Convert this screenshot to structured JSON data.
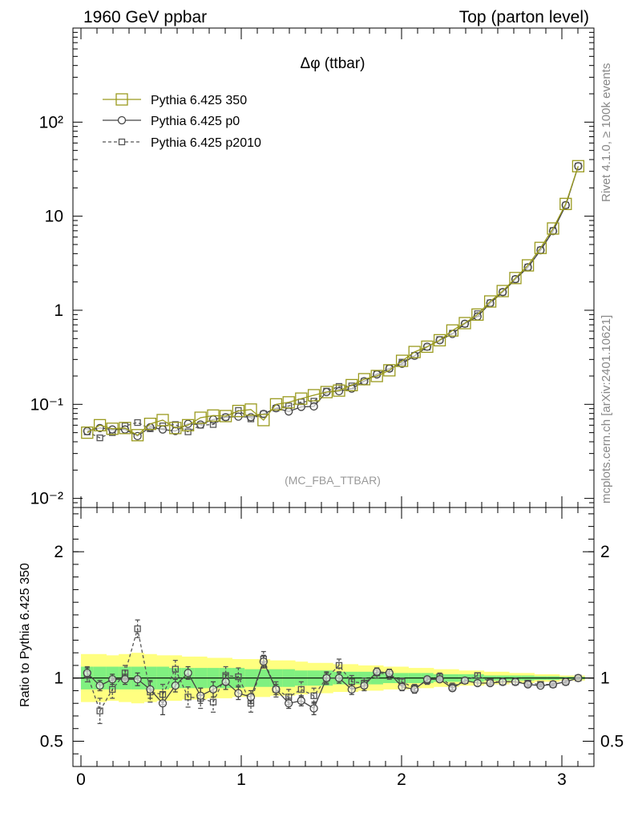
{
  "header": {
    "left_title": "1960 GeV ppbar",
    "right_title": "Top (parton level)"
  },
  "side_labels": {
    "rivet": "Rivet 4.1.0, ≥ 100k events",
    "mcplots": "mcplots.cern.ch [arXiv:2401.10621]"
  },
  "colors": {
    "ref": "#9a9a1e",
    "p0": "#444444",
    "p2010": "#555555",
    "band_yellow": "#ffff80",
    "band_green": "#80f080"
  },
  "chart_data": [
    {
      "type": "line",
      "title": "Δφ (ttbar)",
      "watermark": "(MC_FBA_TTBAR)",
      "xlabel": "",
      "ylabel": "",
      "yscale": "log",
      "xlim": [
        -0.05,
        3.2
      ],
      "ylim": [
        0.008,
        1000
      ],
      "ytick_labels": [
        "10⁻²",
        "10⁻¹",
        "1",
        "10",
        "10²"
      ],
      "x": [
        0.039,
        0.118,
        0.196,
        0.275,
        0.353,
        0.432,
        0.51,
        0.589,
        0.668,
        0.746,
        0.825,
        0.903,
        0.982,
        1.06,
        1.139,
        1.217,
        1.296,
        1.374,
        1.453,
        1.532,
        1.61,
        1.689,
        1.767,
        1.846,
        1.924,
        2.003,
        2.081,
        2.16,
        2.238,
        2.317,
        2.395,
        2.474,
        2.553,
        2.631,
        2.71,
        2.788,
        2.867,
        2.945,
        3.024,
        3.102
      ],
      "series": [
        {
          "name": "Pythia 6.425 350",
          "values": [
            0.05,
            0.06,
            0.055,
            0.056,
            0.047,
            0.062,
            0.068,
            0.056,
            0.06,
            0.072,
            0.076,
            0.075,
            0.085,
            0.088,
            0.068,
            0.1,
            0.105,
            0.115,
            0.125,
            0.135,
            0.14,
            0.16,
            0.185,
            0.2,
            0.23,
            0.29,
            0.36,
            0.41,
            0.48,
            0.61,
            0.73,
            0.9,
            1.24,
            1.6,
            2.2,
            3.0,
            4.6,
            7.4,
            13.5,
            34.0
          ]
        },
        {
          "name": "Pythia 6.425 p0",
          "values": [
            0.052,
            0.056,
            0.054,
            0.054,
            0.046,
            0.057,
            0.054,
            0.052,
            0.062,
            0.061,
            0.069,
            0.073,
            0.074,
            0.073,
            0.079,
            0.091,
            0.084,
            0.094,
            0.095,
            0.135,
            0.138,
            0.147,
            0.176,
            0.208,
            0.24,
            0.27,
            0.328,
            0.41,
            0.48,
            0.56,
            0.72,
            0.86,
            1.19,
            1.56,
            2.14,
            2.86,
            4.35,
            6.95,
            13.1,
            34.0
          ]
        },
        {
          "name": "Pythia 6.425 p2010",
          "values": [
            0.051,
            0.044,
            0.05,
            0.059,
            0.064,
            0.055,
            0.059,
            0.061,
            0.051,
            0.06,
            0.061,
            0.073,
            0.086,
            0.07,
            0.079,
            0.091,
            0.096,
            0.106,
            0.108,
            0.138,
            0.155,
            0.157,
            0.176,
            0.21,
            0.242,
            0.281,
            0.33,
            0.406,
            0.488,
            0.57,
            0.717,
            0.92,
            1.2,
            1.56,
            2.14,
            2.88,
            4.37,
            7.03,
            13.1,
            34.2
          ]
        }
      ]
    },
    {
      "type": "line",
      "title": "",
      "xlabel": "",
      "ylabel": "Ratio to Pythia 6.425 350",
      "xlim": [
        -0.05,
        3.2
      ],
      "ylim": [
        0.3,
        2.35
      ],
      "xticks": [
        0,
        1,
        2,
        3
      ],
      "yticks": [
        0.5,
        1,
        2
      ],
      "x": [
        0.039,
        0.118,
        0.196,
        0.275,
        0.353,
        0.432,
        0.51,
        0.589,
        0.668,
        0.746,
        0.825,
        0.903,
        0.982,
        1.06,
        1.139,
        1.217,
        1.296,
        1.374,
        1.453,
        1.532,
        1.61,
        1.689,
        1.767,
        1.846,
        1.924,
        2.003,
        2.081,
        2.16,
        2.238,
        2.317,
        2.395,
        2.474,
        2.553,
        2.631,
        2.71,
        2.788,
        2.867,
        2.945,
        3.024,
        3.102
      ],
      "band_yellow_halfwidth": [
        0.19,
        0.19,
        0.18,
        0.19,
        0.2,
        0.19,
        0.18,
        0.18,
        0.17,
        0.17,
        0.16,
        0.16,
        0.15,
        0.15,
        0.15,
        0.14,
        0.14,
        0.13,
        0.12,
        0.12,
        0.11,
        0.11,
        0.1,
        0.1,
        0.09,
        0.09,
        0.08,
        0.08,
        0.07,
        0.07,
        0.06,
        0.06,
        0.05,
        0.05,
        0.04,
        0.04,
        0.03,
        0.03,
        0.02,
        0.02
      ],
      "band_green_halfwidth": [
        0.09,
        0.09,
        0.09,
        0.09,
        0.09,
        0.09,
        0.09,
        0.08,
        0.08,
        0.08,
        0.08,
        0.08,
        0.08,
        0.07,
        0.07,
        0.07,
        0.07,
        0.06,
        0.06,
        0.06,
        0.05,
        0.05,
        0.05,
        0.05,
        0.04,
        0.04,
        0.04,
        0.04,
        0.03,
        0.03,
        0.03,
        0.03,
        0.02,
        0.02,
        0.02,
        0.02,
        0.015,
        0.015,
        0.01,
        0.01
      ],
      "series": [
        {
          "name": "Pythia 6.425 p0",
          "values": [
            1.04,
            0.94,
            0.99,
            0.99,
            0.99,
            0.91,
            0.8,
            0.94,
            1.04,
            0.86,
            0.91,
            0.97,
            0.88,
            0.85,
            1.13,
            0.91,
            0.8,
            0.82,
            0.76,
            1.0,
            1.0,
            0.91,
            0.94,
            1.05,
            1.04,
            0.93,
            0.91,
            0.99,
            0.99,
            0.92,
            0.98,
            0.96,
            0.96,
            0.97,
            0.97,
            0.95,
            0.94,
            0.95,
            0.97,
            1.0
          ],
          "errors": [
            0.04,
            0.04,
            0.04,
            0.04,
            0.05,
            0.07,
            0.09,
            0.05,
            0.05,
            0.06,
            0.06,
            0.06,
            0.05,
            0.05,
            0.05,
            0.04,
            0.04,
            0.04,
            0.05,
            0.04,
            0.04,
            0.04,
            0.04,
            0.03,
            0.03,
            0.03,
            0.03,
            0.02,
            0.02,
            0.02,
            0.02,
            0.02,
            0.02,
            0.02,
            0.02,
            0.02,
            0.01,
            0.01,
            0.01,
            0.01
          ]
        },
        {
          "name": "Pythia 6.425 p2010",
          "values": [
            1.03,
            0.74,
            0.91,
            1.04,
            1.39,
            0.89,
            0.87,
            1.07,
            0.85,
            0.84,
            0.81,
            1.02,
            1.01,
            0.8,
            1.15,
            0.91,
            0.85,
            0.91,
            0.86,
            1.0,
            1.1,
            0.97,
            0.96,
            1.04,
            1.03,
            0.97,
            0.92,
            0.98,
            1.01,
            0.93,
            0.98,
            1.02,
            0.97,
            0.97,
            0.97,
            0.96,
            0.95,
            0.95,
            0.97,
            1.0
          ],
          "errors": [
            0.06,
            0.1,
            0.07,
            0.06,
            0.07,
            0.08,
            0.08,
            0.07,
            0.08,
            0.08,
            0.08,
            0.07,
            0.07,
            0.07,
            0.06,
            0.06,
            0.06,
            0.06,
            0.06,
            0.05,
            0.05,
            0.05,
            0.04,
            0.04,
            0.04,
            0.03,
            0.03,
            0.03,
            0.03,
            0.03,
            0.02,
            0.02,
            0.02,
            0.02,
            0.02,
            0.02,
            0.01,
            0.01,
            0.01,
            0.01
          ]
        }
      ]
    }
  ]
}
